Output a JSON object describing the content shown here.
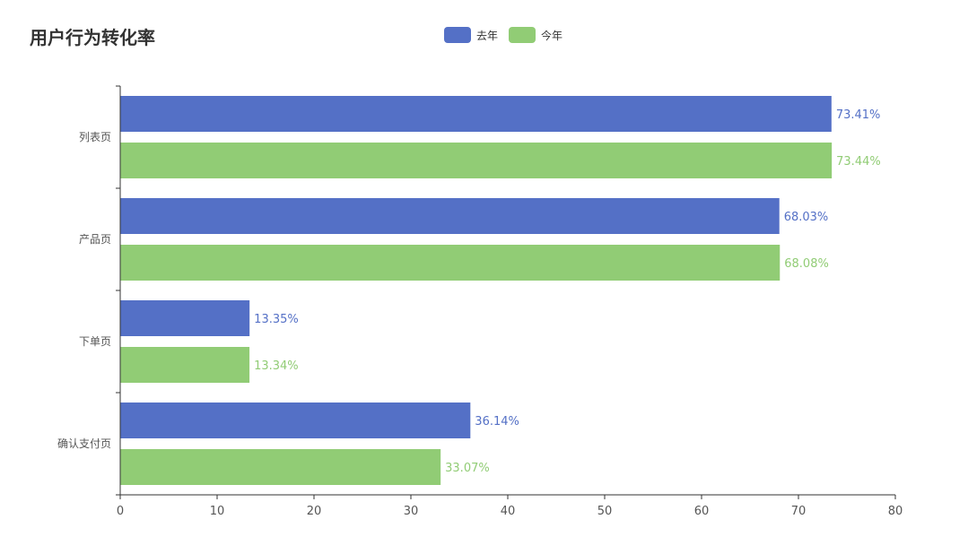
{
  "colors": {
    "last_year": "#5470c6",
    "this_year": "#91cc75",
    "axis": "#333333",
    "tick_text": "#555555",
    "title": "#333333"
  },
  "chart_data": {
    "type": "bar",
    "orientation": "horizontal",
    "title": "用户行为转化率",
    "categories": [
      "列表页",
      "产品页",
      "下单页",
      "确认支付页"
    ],
    "series": [
      {
        "name": "去年",
        "color": "#5470c6",
        "values": [
          73.41,
          68.03,
          13.35,
          36.14
        ],
        "labels": [
          "73.41%",
          "68.03%",
          "13.35%",
          "36.14%"
        ]
      },
      {
        "name": "今年",
        "color": "#91cc75",
        "values": [
          73.44,
          68.08,
          13.34,
          33.07
        ],
        "labels": [
          "73.44%",
          "68.08%",
          "13.34%",
          "33.07%"
        ]
      }
    ],
    "xlim": [
      0,
      80
    ],
    "xticks": [
      0,
      10,
      20,
      30,
      40,
      50,
      60,
      70,
      80
    ],
    "xtick_labels": [
      "0",
      "10",
      "20",
      "30",
      "40",
      "50",
      "60",
      "70",
      "80"
    ],
    "grid": false,
    "legend_position": "top-center"
  }
}
